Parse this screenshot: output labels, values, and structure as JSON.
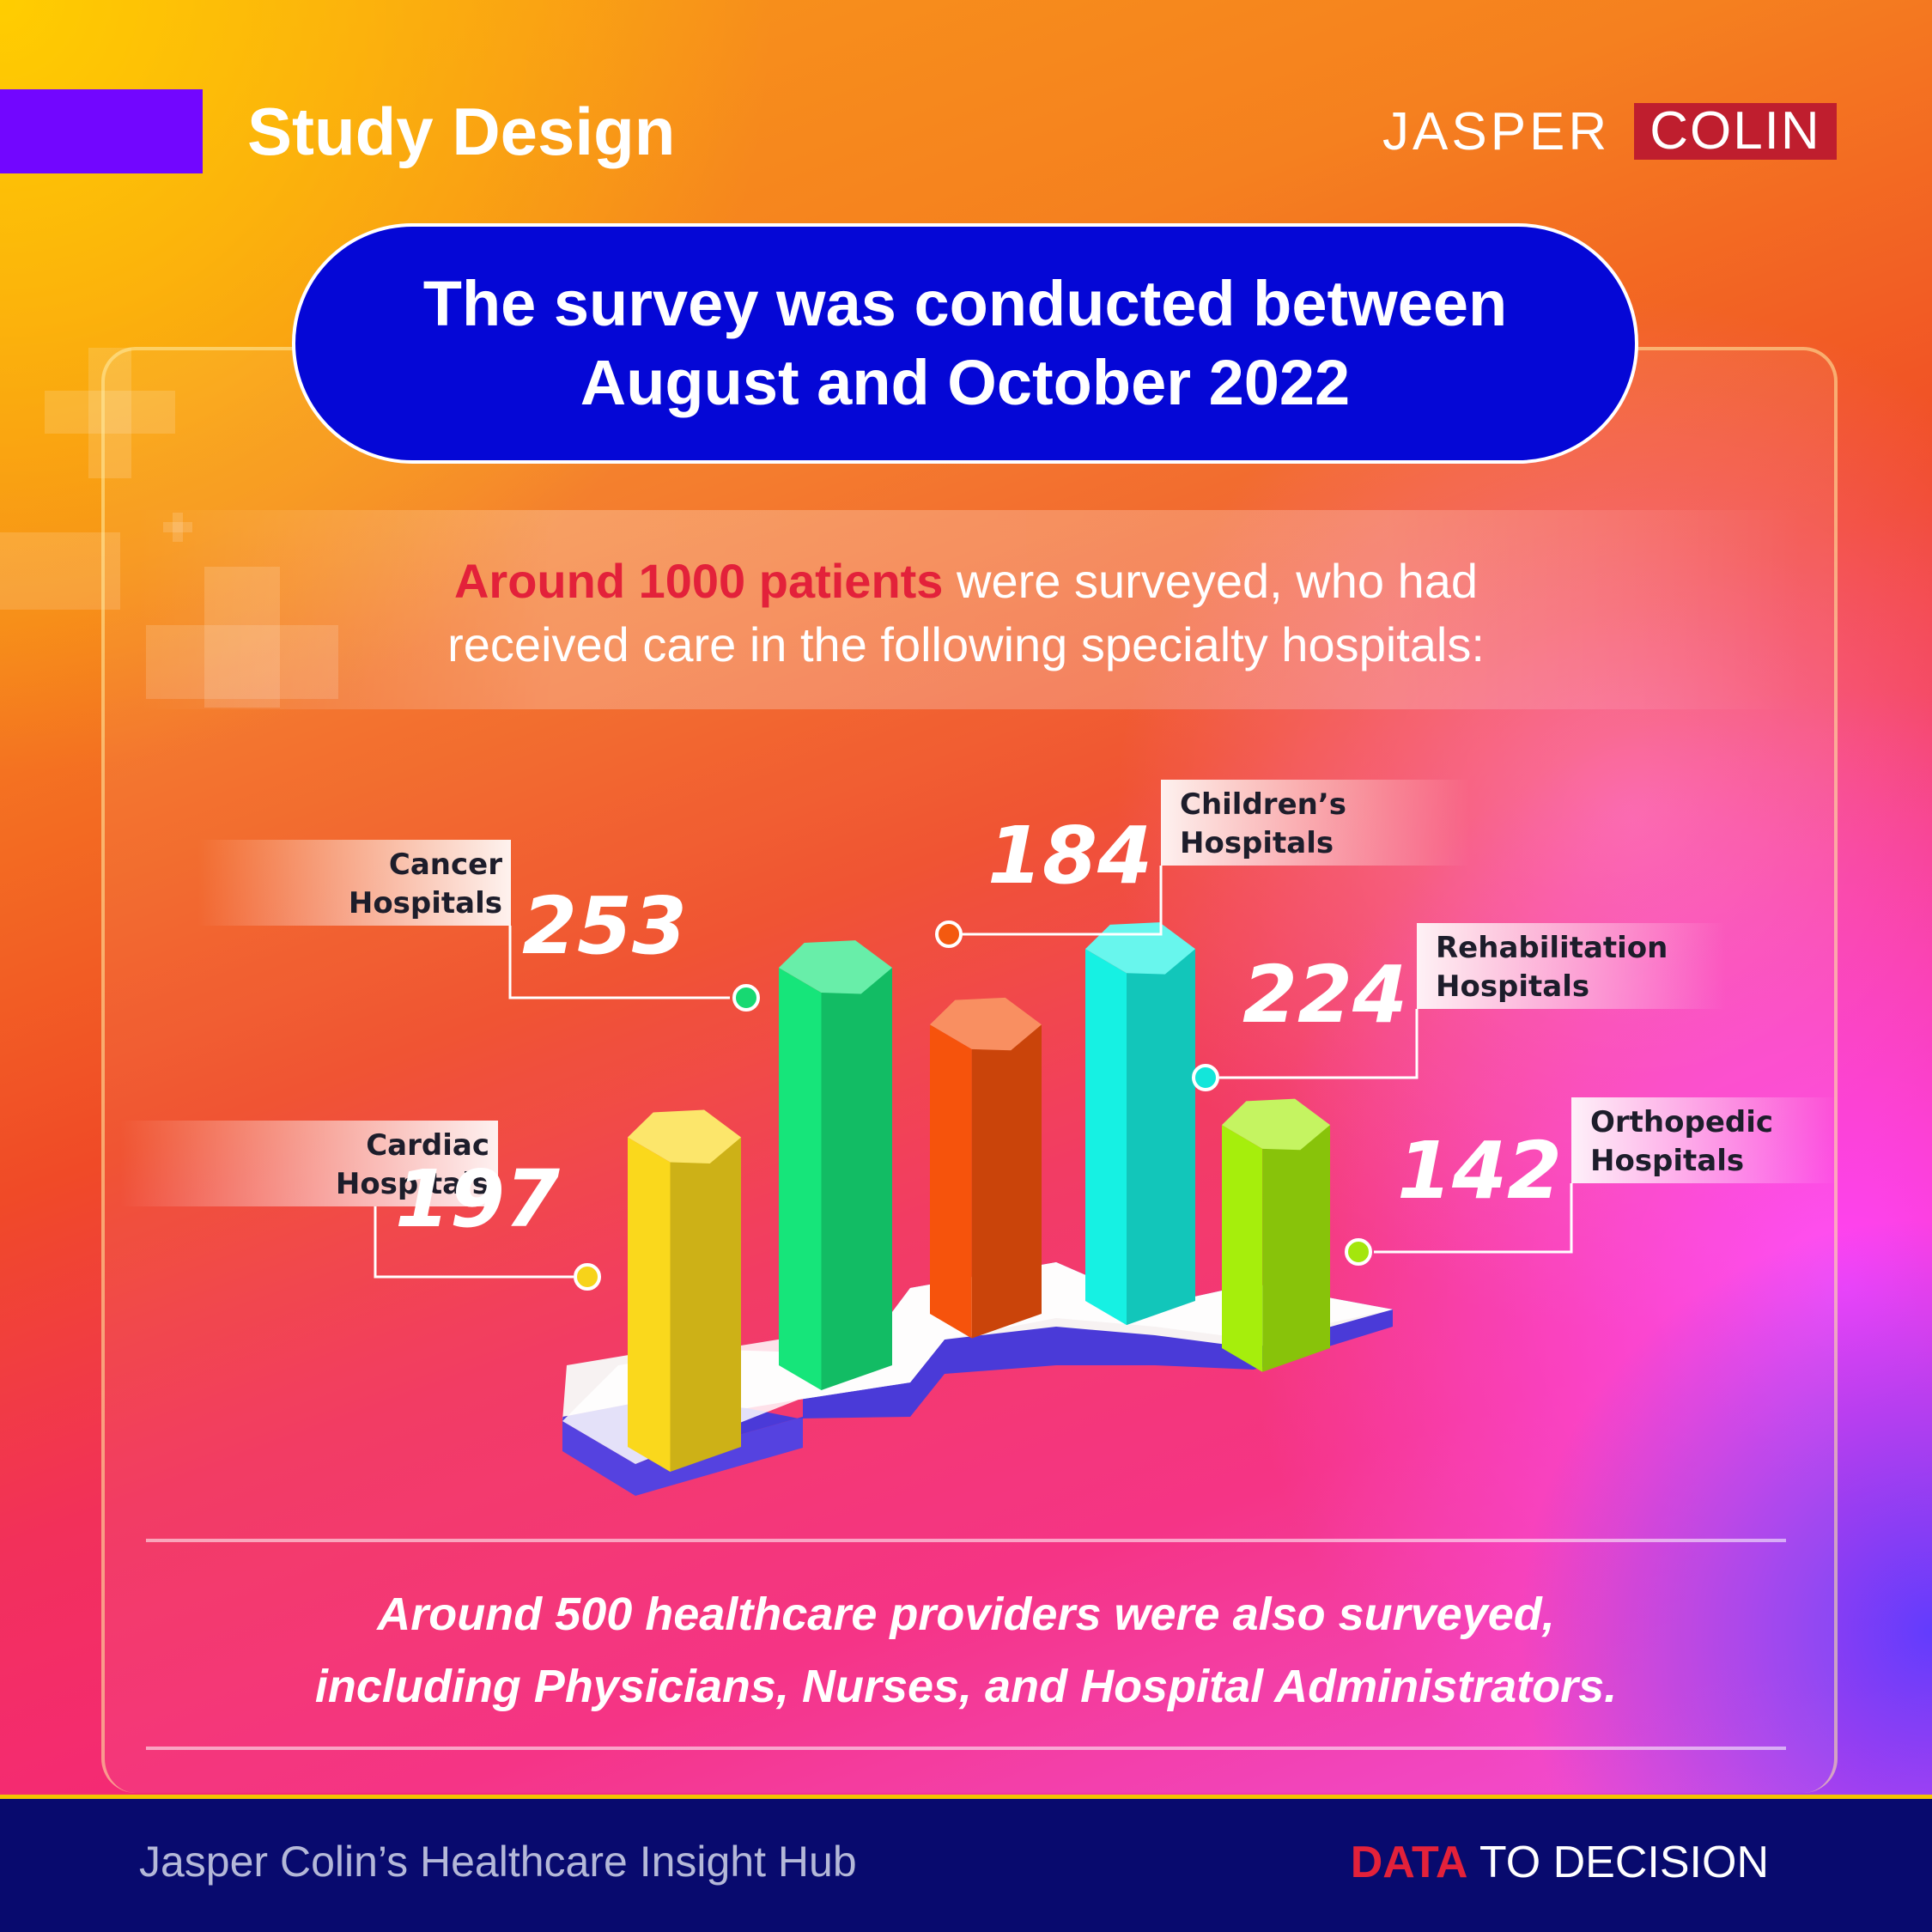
{
  "header": {
    "title": "Study Design",
    "logo_left": "JASPER",
    "logo_right": "COLIN"
  },
  "banner": {
    "line1": "The survey was conducted between",
    "line2": "August and October 2022"
  },
  "intro": {
    "highlight": "Around 1000 patients",
    "rest_line1": " were surveyed, who had",
    "line2": "received care in the following specialty hospitals:"
  },
  "chart_data": {
    "type": "bar",
    "title": "",
    "categories": [
      "Cardiac Hospitals",
      "Cancer Hospitals",
      "Children’s Hospitals",
      "Rehabilitation Hospitals",
      "Orthopedic Hospitals"
    ],
    "values": [
      197,
      253,
      184,
      224,
      142
    ],
    "label_lines": [
      [
        "Cardiac",
        "Hospitals"
      ],
      [
        "Cancer",
        "Hospitals"
      ],
      [
        "Children’s",
        "Hospitals"
      ],
      [
        "Rehabilitation",
        "Hospitals"
      ],
      [
        "Orthopedic",
        "Hospitals"
      ]
    ],
    "colors": [
      "#fad81c",
      "#16e57a",
      "#f6530c",
      "#16f1e3",
      "#a6ee0c"
    ]
  },
  "footer_note": {
    "line1": "Around 500 healthcare providers were also surveyed,",
    "line2": "including Physicians, Nurses, and Hospital Administrators."
  },
  "footer": {
    "hub": "Jasper Colin’s Healthcare Insight Hub",
    "tag_data": "DATA",
    "tag_rest": " TO DECISION"
  }
}
